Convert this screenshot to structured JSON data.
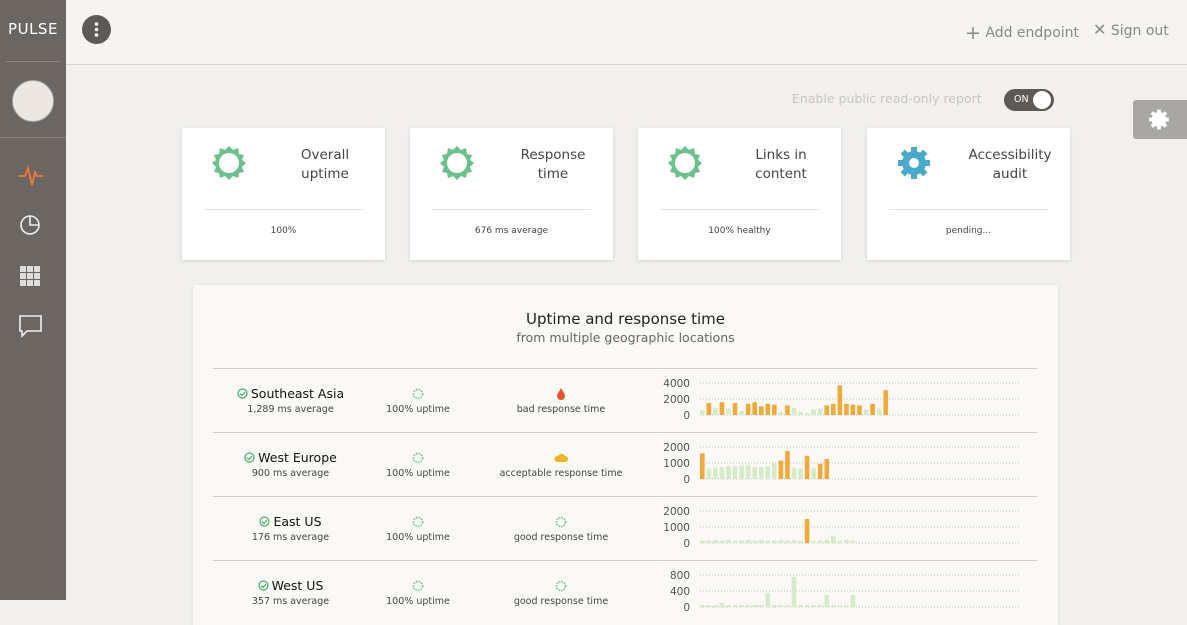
{
  "sidebar": {
    "brand": "PULSE"
  },
  "topbar": {
    "add_endpoint": "Add endpoint",
    "sign_out": "Sign out"
  },
  "report_toggle": {
    "label": "Enable public read-only report",
    "state": "ON"
  },
  "cards": [
    {
      "title": "Overall uptime",
      "value": "100%",
      "icon_color": "#6cc08b"
    },
    {
      "title": "Response time",
      "value": "676 ms average",
      "icon_color": "#6cc08b"
    },
    {
      "title": "Links in content",
      "value": "100% healthy",
      "icon_color": "#6cc08b"
    },
    {
      "title": "Accessibility audit",
      "value": "pending...",
      "icon_color": "#4aa8c8"
    }
  ],
  "panel": {
    "title": "Uptime and response time",
    "subtitle": "from multiple geographic locations",
    "rows": [
      {
        "location": "Southeast Asia",
        "average": "1,289 ms average",
        "uptime": "100% uptime",
        "response": "bad response time",
        "response_color": "#e8542a",
        "chart": {
          "type": "bar",
          "ylim": [
            0,
            4000
          ],
          "yticks": [
            0,
            2000,
            4000
          ],
          "values": [
            600,
            1500,
            900,
            1600,
            800,
            1500,
            500,
            1400,
            1600,
            1100,
            1400,
            1300,
            400,
            1200,
            900,
            400,
            200,
            700,
            800,
            1200,
            1400,
            3700,
            1400,
            1300,
            1200,
            700,
            1400,
            800,
            3100
          ],
          "colors": [
            "#d5ebc9",
            "#f2a93b",
            "#d5ebc9",
            "#f2a93b",
            "#d5ebc9",
            "#f2a93b",
            "#d5ebc9",
            "#f2a93b",
            "#f2a93b",
            "#f2a93b",
            "#f2a93b",
            "#f2a93b",
            "#d5ebc9",
            "#f2a93b",
            "#d5ebc9",
            "#d5ebc9",
            "#d5ebc9",
            "#d5ebc9",
            "#d5ebc9",
            "#f2a93b",
            "#f2a93b",
            "#f2a93b",
            "#f2a93b",
            "#f2a93b",
            "#f2a93b",
            "#d5ebc9",
            "#f2a93b",
            "#d5ebc9",
            "#f2a93b"
          ]
        }
      },
      {
        "location": "West Europe",
        "average": "900 ms average",
        "uptime": "100% uptime",
        "response": "acceptable response time",
        "response_color": "#f0b429",
        "chart": {
          "type": "bar",
          "ylim": [
            0,
            2000
          ],
          "yticks": [
            0,
            1000,
            2000
          ],
          "values": [
            1600,
            650,
            700,
            750,
            800,
            800,
            850,
            900,
            750,
            750,
            800,
            950,
            1150,
            1750,
            700,
            650,
            1450,
            700,
            950,
            1250
          ],
          "colors": [
            "#f2a93b",
            "#d5ebc9",
            "#d5ebc9",
            "#d5ebc9",
            "#d5ebc9",
            "#d5ebc9",
            "#d5ebc9",
            "#d5ebc9",
            "#d5ebc9",
            "#d5ebc9",
            "#d5ebc9",
            "#d5ebc9",
            "#f2a93b",
            "#f2a93b",
            "#d5ebc9",
            "#d5ebc9",
            "#f2a93b",
            "#d5ebc9",
            "#f2a93b",
            "#f2a93b"
          ]
        }
      },
      {
        "location": "East US",
        "average": "176 ms average",
        "uptime": "100% uptime",
        "response": "good response time",
        "response_color": "#6cc08b",
        "chart": {
          "type": "bar",
          "ylim": [
            0,
            2000
          ],
          "yticks": [
            0,
            1000,
            2000
          ],
          "values": [
            150,
            150,
            200,
            150,
            200,
            150,
            150,
            200,
            150,
            200,
            150,
            150,
            200,
            150,
            200,
            150,
            1500,
            150,
            150,
            200,
            450,
            150,
            200,
            150
          ],
          "colors": [
            "#d5ebc9",
            "#d5ebc9",
            "#d5ebc9",
            "#d5ebc9",
            "#d5ebc9",
            "#d5ebc9",
            "#d5ebc9",
            "#d5ebc9",
            "#d5ebc9",
            "#d5ebc9",
            "#d5ebc9",
            "#d5ebc9",
            "#d5ebc9",
            "#d5ebc9",
            "#d5ebc9",
            "#d5ebc9",
            "#f2a93b",
            "#d5ebc9",
            "#d5ebc9",
            "#d5ebc9",
            "#d5ebc9",
            "#d5ebc9",
            "#d5ebc9",
            "#d5ebc9"
          ]
        }
      },
      {
        "location": "West US",
        "average": "357 ms average",
        "uptime": "100% uptime",
        "response": "good response time",
        "response_color": "#6cc08b",
        "chart": {
          "type": "bar",
          "ylim": [
            0,
            800
          ],
          "yticks": [
            0,
            400,
            800
          ],
          "values": [
            50,
            50,
            50,
            100,
            50,
            50,
            50,
            50,
            50,
            50,
            350,
            50,
            50,
            50,
            750,
            50,
            50,
            50,
            50,
            300,
            50,
            50,
            50,
            300
          ],
          "colors": [
            "#d5ebc9",
            "#d5ebc9",
            "#d5ebc9",
            "#d5ebc9",
            "#d5ebc9",
            "#d5ebc9",
            "#d5ebc9",
            "#d5ebc9",
            "#d5ebc9",
            "#d5ebc9",
            "#d5ebc9",
            "#d5ebc9",
            "#d5ebc9",
            "#d5ebc9",
            "#d5ebc9",
            "#d5ebc9",
            "#d5ebc9",
            "#d5ebc9",
            "#d5ebc9",
            "#d5ebc9",
            "#d5ebc9",
            "#d5ebc9",
            "#d5ebc9",
            "#d5ebc9"
          ]
        }
      }
    ]
  }
}
